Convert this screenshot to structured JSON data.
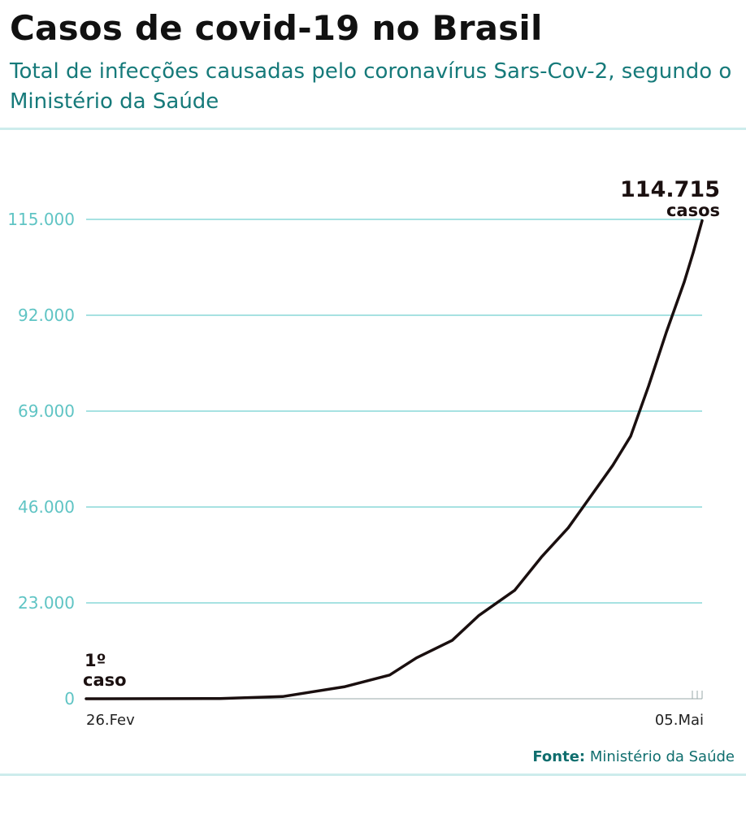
{
  "header": {
    "title": "Casos de covid-19 no Brasil",
    "subtitle": "Total de infecções causadas pelo coronavírus Sars-Cov-2, segundo o Ministério da Saúde"
  },
  "colors": {
    "title": "#111111",
    "accent": "#167a7a",
    "gridline": "#4fc6c6",
    "tick_label": "#5fc4c4",
    "line": "#1a0f0f"
  },
  "chart_data": {
    "type": "line",
    "title": "",
    "xlabel": "",
    "ylabel": "",
    "x_tick_labels": [
      "26.Fev",
      "05.Mai"
    ],
    "y_tick_labels": [
      "0",
      "23.000",
      "46.000",
      "69.000",
      "92.000",
      "115.000"
    ],
    "y_ticks": [
      0,
      23000,
      46000,
      69000,
      92000,
      115000
    ],
    "ylim": [
      0,
      115000
    ],
    "xlim": [
      "2020-02-26",
      "2020-05-05"
    ],
    "grid": true,
    "series": [
      {
        "x": [
          "2020-02-26",
          "2020-03-05",
          "2020-03-12",
          "2020-03-19",
          "2020-03-26",
          "2020-03-31",
          "2020-04-03",
          "2020-04-07",
          "2020-04-10",
          "2020-04-14",
          "2020-04-17",
          "2020-04-20",
          "2020-04-22",
          "2020-04-25",
          "2020-04-27",
          "2020-04-29",
          "2020-05-01",
          "2020-05-03",
          "2020-05-04",
          "2020-05-05"
        ],
        "values": [
          1,
          10,
          60,
          530,
          2900,
          5700,
          9800,
          14000,
          20000,
          26000,
          34000,
          41000,
          47000,
          56000,
          63000,
          75000,
          88000,
          100000,
          107000,
          114715
        ]
      }
    ],
    "annotations": {
      "first_case": {
        "number": "1º",
        "word": "caso"
      },
      "last_value": {
        "number": "114.715",
        "word": "casos"
      }
    }
  },
  "source": {
    "label": "Fonte:",
    "text": "Ministério da Saúde"
  }
}
